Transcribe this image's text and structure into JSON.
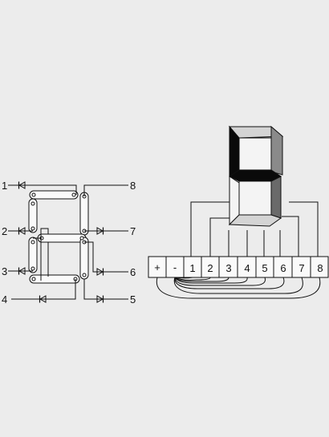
{
  "diagram": {
    "led_labels": [
      "1",
      "2",
      "3",
      "4",
      "8",
      "7",
      "6",
      "5"
    ],
    "terminal_labels": [
      "+",
      "-",
      "1",
      "2",
      "3",
      "4",
      "5",
      "6",
      "7",
      "8"
    ]
  },
  "colors": {
    "background": "#ececec",
    "ink": "#111111",
    "segment_face": "#f4f4f4",
    "segment_dark": "#0a0a0a",
    "segment_grey": "#8a8a8a",
    "segment_light": "#d4d4d4"
  }
}
